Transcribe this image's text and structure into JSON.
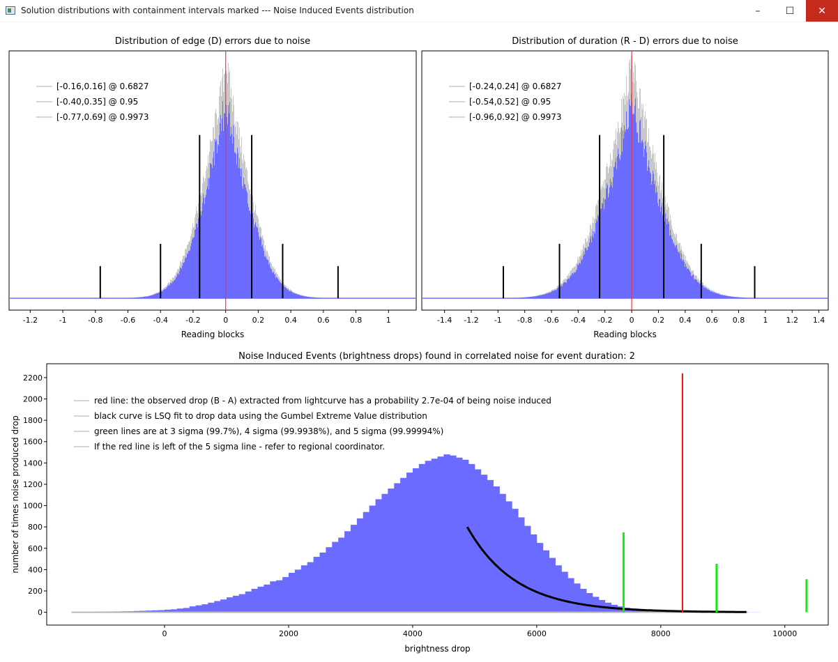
{
  "window": {
    "title": "Solution distributions with containment intervals marked --- Noise Induced Events distribution",
    "controls": {
      "minimize": "–",
      "maximize": "☐",
      "close": "✕"
    }
  },
  "chart_data": [
    {
      "type": "bar",
      "title": "Distribution of edge (D) errors due to noise",
      "xlabel": "Reading blocks",
      "ylabel": "",
      "xlim": [
        -1.33,
        1.17
      ],
      "xticks": [
        "-1.2",
        "-1",
        "-0.8",
        "-0.6",
        "-0.4",
        "-0.2",
        "0",
        "0.2",
        "0.4",
        "0.6",
        "0.8",
        "1"
      ],
      "xtick_values": [
        -1.2,
        -1,
        -0.8,
        -0.6,
        -0.4,
        -0.2,
        0,
        0.2,
        0.4,
        0.6,
        0.8,
        1
      ],
      "legend": [
        "[-0.16,0.16] @ 0.6827",
        "[-0.40,0.35] @ 0.95",
        "[-0.77,0.69] @ 0.9973"
      ],
      "legend_position": "top-left",
      "distribution": {
        "center": 0,
        "sigma": 0.16,
        "peak_fraction": 0.92
      },
      "red_line_x": 0,
      "interval_lines": [
        {
          "x": -0.16,
          "h": 0.66
        },
        {
          "x": 0.16,
          "h": 0.66
        },
        {
          "x": -0.4,
          "h": 0.22
        },
        {
          "x": 0.35,
          "h": 0.22
        },
        {
          "x": -0.77,
          "h": 0.13
        },
        {
          "x": 0.69,
          "h": 0.13
        }
      ],
      "colors": {
        "bars": "#6b6bff",
        "gray": "#c8c8c8",
        "red": "#ff3030",
        "interval": "#000000"
      }
    },
    {
      "type": "bar",
      "title": "Distribution of duration (R - D) errors due to noise",
      "xlabel": "Reading blocks",
      "ylabel": "",
      "xlim": [
        -1.57,
        1.47
      ],
      "xticks": [
        "-1.4",
        "-1.2",
        "-1",
        "-0.8",
        "-0.6",
        "-0.4",
        "-0.2",
        "0",
        "0.2",
        "0.4",
        "0.6",
        "0.8",
        "1",
        "1.2",
        "1.4"
      ],
      "xtick_values": [
        -1.4,
        -1.2,
        -1,
        -0.8,
        -0.6,
        -0.4,
        -0.2,
        0,
        0.2,
        0.4,
        0.6,
        0.8,
        1,
        1.2,
        1.4
      ],
      "legend": [
        "[-0.24,0.24] @ 0.6827",
        "[-0.54,0.52] @ 0.95",
        "[-0.96,0.92] @ 0.9973"
      ],
      "legend_position": "top-left",
      "distribution": {
        "center": 0,
        "sigma": 0.24,
        "peak_fraction": 0.92
      },
      "red_line_x": 0,
      "interval_lines": [
        {
          "x": -0.24,
          "h": 0.66
        },
        {
          "x": 0.24,
          "h": 0.66
        },
        {
          "x": -0.54,
          "h": 0.22
        },
        {
          "x": 0.52,
          "h": 0.22
        },
        {
          "x": -0.96,
          "h": 0.13
        },
        {
          "x": 0.92,
          "h": 0.13
        }
      ],
      "colors": {
        "bars": "#6b6bff",
        "gray": "#c8c8c8",
        "red": "#ff3030",
        "interval": "#000000"
      }
    },
    {
      "type": "bar",
      "title": "Noise Induced Events (brightness drops) found in correlated noise for event duration: 2",
      "xlabel": "brightness drop",
      "ylabel": "number of times noise produced drop",
      "xlim": [
        -1900,
        10700
      ],
      "ylim": [
        -120,
        2330
      ],
      "xticks": [
        "0",
        "2000",
        "4000",
        "6000",
        "8000",
        "10000"
      ],
      "xtick_values": [
        0,
        2000,
        4000,
        6000,
        8000,
        10000
      ],
      "yticks": [
        "0",
        "200",
        "400",
        "600",
        "800",
        "1000",
        "1200",
        "1400",
        "1600",
        "1800",
        "2000",
        "2200"
      ],
      "ytick_values": [
        0,
        200,
        400,
        600,
        800,
        1000,
        1200,
        1400,
        1600,
        1800,
        2000,
        2200
      ],
      "legend": [
        "red line: the observed drop (B - A) extracted from lightcurve has a probability 2.7e-04 of being noise induced",
        "black curve is LSQ fit to drop data using the Gumbel Extreme Value distribution",
        "green lines are at 3 sigma (99.7%), 4 sigma (99.9938%), and 5 sigma (99.99994%)",
        "If the red line is left of the 5 sigma line - refer to regional coordinator."
      ],
      "legend_position": "top-left",
      "histogram": {
        "bin_start": -1500,
        "bin_width": 100,
        "values": [
          2,
          2,
          3,
          4,
          5,
          6,
          7,
          8,
          9,
          10,
          12,
          14,
          16,
          18,
          20,
          24,
          28,
          35,
          40,
          55,
          65,
          75,
          90,
          105,
          120,
          140,
          155,
          170,
          195,
          220,
          240,
          260,
          290,
          300,
          330,
          370,
          400,
          440,
          470,
          520,
          560,
          610,
          660,
          700,
          760,
          820,
          880,
          940,
          1000,
          1060,
          1110,
          1160,
          1210,
          1260,
          1310,
          1350,
          1390,
          1420,
          1440,
          1460,
          1480,
          1470,
          1450,
          1430,
          1390,
          1340,
          1290,
          1240,
          1180,
          1110,
          1040,
          970,
          890,
          810,
          730,
          650,
          580,
          510,
          440,
          380,
          320,
          270,
          220,
          180,
          145,
          115,
          90,
          70,
          55,
          42,
          33,
          26,
          20,
          15,
          12,
          9,
          7,
          5,
          4,
          3,
          2,
          2,
          1,
          1,
          1,
          1,
          1,
          1,
          1,
          1,
          1
        ]
      },
      "gumbel_fit": {
        "x_start": 4880,
        "x_end": 9400,
        "y_start": 800
      },
      "red_line": {
        "x": 8350,
        "height": 2240
      },
      "green_lines": [
        {
          "x": 7400,
          "height": 750
        },
        {
          "x": 8900,
          "height": 455
        },
        {
          "x": 10350,
          "height": 310
        }
      ],
      "colors": {
        "bars": "#6b6bff",
        "fit": "#000000",
        "red": "#ee1111",
        "green": "#11ee11",
        "baseline": "#b8b8b8"
      }
    }
  ]
}
